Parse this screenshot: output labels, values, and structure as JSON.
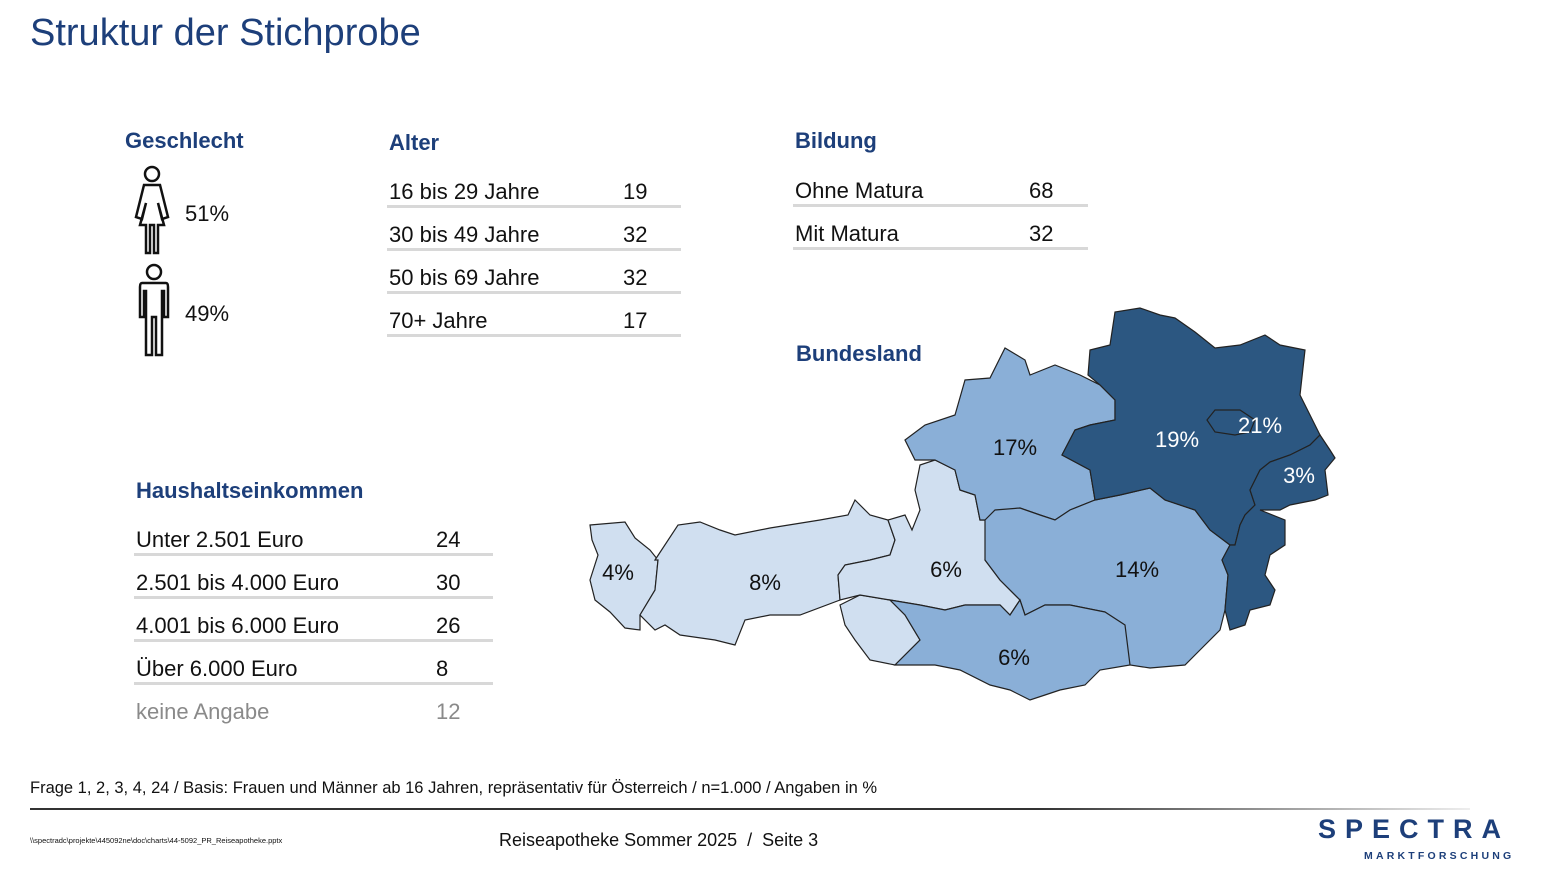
{
  "title": "Struktur der Stichprobe",
  "gender": {
    "heading": "Geschlecht",
    "female": "51%",
    "male": "49%"
  },
  "age": {
    "heading": "Alter",
    "rows": [
      {
        "label": "16 bis 29 Jahre",
        "value": "19"
      },
      {
        "label": "30 bis 49 Jahre",
        "value": "32"
      },
      {
        "label": "50 bis 69 Jahre",
        "value": "32"
      },
      {
        "label": "70+ Jahre",
        "value": "17"
      }
    ]
  },
  "education": {
    "heading": "Bildung",
    "rows": [
      {
        "label": "Ohne Matura",
        "value": "68"
      },
      {
        "label": "Mit Matura",
        "value": "32"
      }
    ]
  },
  "income": {
    "heading": "Haushaltseinkommen",
    "rows": [
      {
        "label": "Unter 2.501 Euro",
        "value": "24"
      },
      {
        "label": "2.501 bis 4.000 Euro",
        "value": "30"
      },
      {
        "label": "4.001 bis 6.000 Euro",
        "value": "26"
      },
      {
        "label": "Über 6.000 Euro",
        "value": "8"
      },
      {
        "label": "keine Angabe",
        "value": "12"
      }
    ]
  },
  "state": {
    "heading": "Bundesland",
    "regions": [
      {
        "name": "Vorarlberg",
        "label": "4%",
        "color": "#d0dff0"
      },
      {
        "name": "Tirol",
        "label": "8%",
        "color": "#d0dff0"
      },
      {
        "name": "Salzburg",
        "label": "6%",
        "color": "#d0dff0"
      },
      {
        "name": "Oberösterreich",
        "label": "17%",
        "color": "#8aafd7"
      },
      {
        "name": "Steiermark",
        "label": "14%",
        "color": "#8aafd7"
      },
      {
        "name": "Kärnten",
        "label": "6%",
        "color": "#8aafd7"
      },
      {
        "name": "Niederösterreich",
        "label": "19%",
        "color": "#2c5781"
      },
      {
        "name": "Wien",
        "label": "21%",
        "color": "#2c5781"
      },
      {
        "name": "Burgenland",
        "label": "3%",
        "color": "#2c5781"
      }
    ]
  },
  "footnote": "Frage 1, 2, 3, 4, 24 / Basis: Frauen und Männer ab 16 Jahren, repräsentativ für Österreich / n=1.000 / Angaben in %",
  "filepath": "\\\\spectradc\\projekte\\445092ne\\doc\\charts\\44-5092_PR_Reiseapotheke.pptx",
  "footer_center": "Reiseapotheke Sommer 2025  /  Seite 3",
  "logo": {
    "name": "SPECTRA",
    "sub": "MARKTFORSCHUNG"
  }
}
